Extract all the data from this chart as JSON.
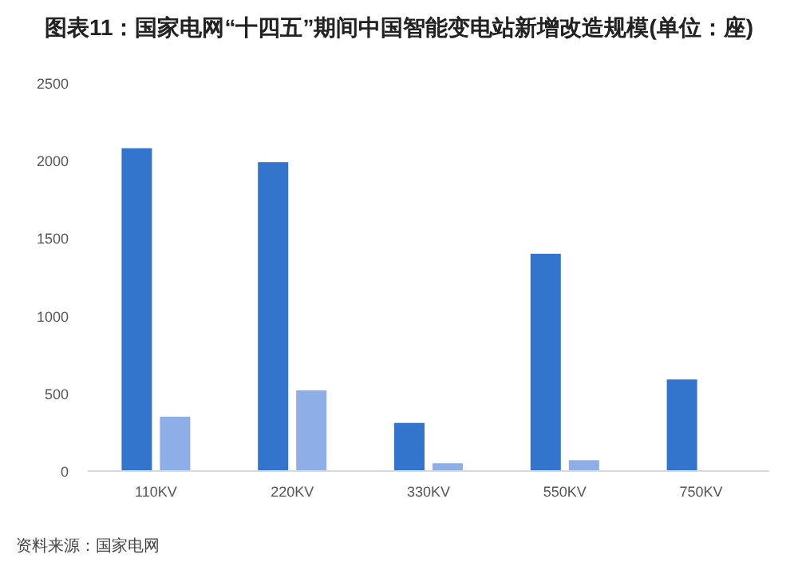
{
  "chart_data": {
    "type": "bar",
    "title": "图表11：国家电网“十四五”期间中国智能变电站新增改造规模(单位：座)",
    "categories": [
      "110KV",
      "220KV",
      "330KV",
      "550KV",
      "750KV"
    ],
    "series": [
      {
        "color": "#3375cc",
        "values": [
          2080,
          1990,
          310,
          1400,
          590
        ]
      },
      {
        "color": "#8eaee8",
        "values": [
          350,
          520,
          50,
          70,
          null
        ]
      }
    ],
    "ylim": [
      0,
      2500
    ],
    "yticks": [
      0,
      500,
      1000,
      1500,
      2000,
      2500
    ],
    "grid": false,
    "annotations": [
      "资料来源：国家电网"
    ]
  }
}
